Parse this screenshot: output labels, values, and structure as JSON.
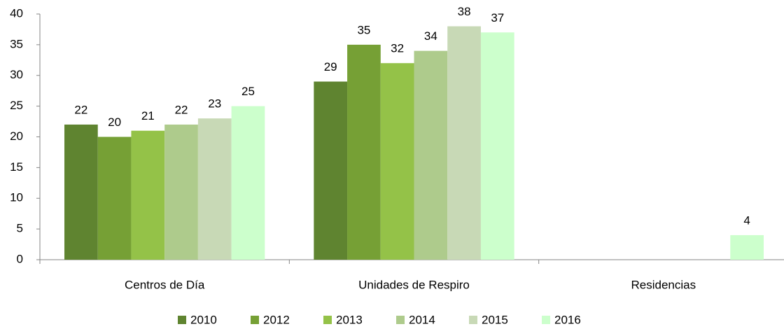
{
  "chart_data": {
    "type": "bar",
    "categories": [
      "Centros de Día",
      "Unidades de Respiro",
      "Residencias"
    ],
    "series": [
      {
        "name": "2010",
        "color": "#5f8430",
        "values": [
          22,
          29,
          null
        ]
      },
      {
        "name": "2012",
        "color": "#76a035",
        "values": [
          20,
          35,
          null
        ]
      },
      {
        "name": "2013",
        "color": "#94c248",
        "values": [
          21,
          32,
          null
        ]
      },
      {
        "name": "2014",
        "color": "#aecb8c",
        "values": [
          22,
          34,
          null
        ]
      },
      {
        "name": "2015",
        "color": "#c8d9b6",
        "values": [
          23,
          38,
          null
        ]
      },
      {
        "name": "2016",
        "color": "#ccffcc",
        "values": [
          25,
          37,
          4
        ]
      }
    ],
    "ylim": [
      0,
      40
    ],
    "yticks": [
      0,
      5,
      10,
      15,
      20,
      25,
      30,
      35,
      40
    ],
    "legend": "bottom"
  }
}
